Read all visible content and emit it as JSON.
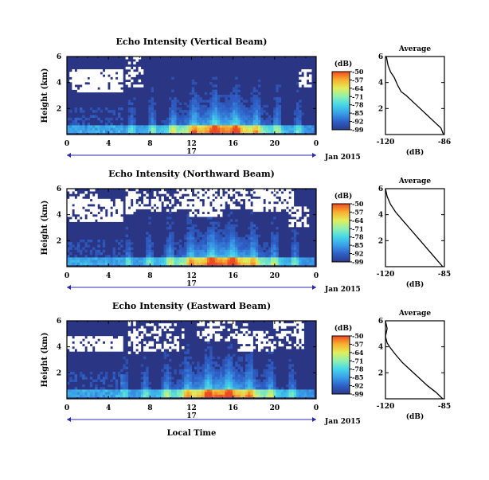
{
  "colors": {
    "background": "#2a3684",
    "colorbar": [
      "#2b3a8a",
      "#2f60c8",
      "#3a9fe8",
      "#46d6e8",
      "#8ff0b0",
      "#e2ee5a",
      "#f8b030",
      "#f04a20"
    ],
    "gap": "#ffffff"
  },
  "shared": {
    "ylabel": "Height (km)",
    "cbar_label": "(dB)",
    "avg_title": "Average",
    "avg_xlabel": "(dB)",
    "date_label": "Jan 2015",
    "day_label": "17",
    "x_label": "Local Time"
  },
  "chart_data": [
    {
      "type": "heatmap",
      "title": "Echo Intensity (Vertical Beam)",
      "xlabel": "",
      "ylabel": "Height (km)",
      "x_ticks": [
        "0",
        "4",
        "8",
        "12",
        "16",
        "20",
        "0"
      ],
      "y_ticks": [
        "2",
        "4",
        "6"
      ],
      "xlim": [
        0,
        24
      ],
      "ylim": [
        0,
        6
      ],
      "colorbar": {
        "label": "(dB)",
        "ticks": [
          "-50",
          "-57",
          "-64",
          "-71",
          "-78",
          "-85",
          "-92",
          "-99"
        ],
        "range": [
          -99,
          -50
        ]
      },
      "profile": {
        "title": "Average",
        "xlabel": "(dB)",
        "x_ticks": [
          "-120",
          "-86"
        ],
        "y_ticks": [
          "2",
          "4",
          "6"
        ],
        "xlim": [
          -120,
          -86
        ],
        "ylim": [
          0,
          6
        ],
        "x": [
          -86.5,
          -88,
          -92,
          -96,
          -100,
          -104,
          -108,
          -111,
          -113,
          -115,
          -117,
          -118.5,
          -119.5
        ],
        "y": [
          0,
          0.5,
          1.0,
          1.5,
          2.0,
          2.5,
          3.0,
          3.3,
          3.8,
          4.4,
          4.8,
          5.3,
          6
        ]
      }
    },
    {
      "type": "heatmap",
      "title": "Echo Intensity (Northward Beam)",
      "xlabel": "",
      "ylabel": "Height (km)",
      "x_ticks": [
        "0",
        "4",
        "8",
        "12",
        "16",
        "20",
        "0"
      ],
      "y_ticks": [
        "2",
        "4",
        "6"
      ],
      "xlim": [
        0,
        24
      ],
      "ylim": [
        0,
        6
      ],
      "colorbar": {
        "label": "(dB)",
        "ticks": [
          "-50",
          "-57",
          "-64",
          "-71",
          "-78",
          "-85",
          "-92",
          "-99"
        ],
        "range": [
          -99,
          -50
        ]
      },
      "profile": {
        "title": "Average",
        "xlabel": "(dB)",
        "x_ticks": [
          "-120",
          "-85"
        ],
        "y_ticks": [
          "2",
          "4",
          "6"
        ],
        "xlim": [
          -120,
          -85
        ],
        "ylim": [
          0,
          6
        ],
        "x": [
          -86,
          -90,
          -94,
          -98,
          -102,
          -106,
          -110,
          -114,
          -117,
          -119,
          -120
        ],
        "y": [
          0,
          0.6,
          1.2,
          1.8,
          2.4,
          3.0,
          3.6,
          4.2,
          4.8,
          5.4,
          6
        ]
      }
    },
    {
      "type": "heatmap",
      "title": "Echo Intensity (Eastward Beam)",
      "xlabel": "Local Time",
      "ylabel": "Height (km)",
      "x_ticks": [
        "0",
        "4",
        "8",
        "12",
        "16",
        "20",
        "0"
      ],
      "y_ticks": [
        "2",
        "4",
        "6"
      ],
      "xlim": [
        0,
        24
      ],
      "ylim": [
        0,
        6
      ],
      "colorbar": {
        "label": "(dB)",
        "ticks": [
          "-50",
          "-57",
          "-64",
          "-71",
          "-78",
          "-85",
          "-92",
          "-99"
        ],
        "range": [
          -99,
          -50
        ]
      },
      "profile": {
        "title": "Average",
        "xlabel": "(dB)",
        "x_ticks": [
          "-120",
          "-85"
        ],
        "y_ticks": [
          "2",
          "4",
          "6"
        ],
        "xlim": [
          -120,
          -85
        ],
        "ylim": [
          0,
          6
        ],
        "x": [
          -86,
          -90,
          -95,
          -100,
          -105,
          -110,
          -114,
          -117,
          -119,
          -120,
          -119,
          -120
        ],
        "y": [
          0,
          0.5,
          1.0,
          1.6,
          2.2,
          2.8,
          3.4,
          3.9,
          4.3,
          4.8,
          5.4,
          6
        ]
      }
    }
  ]
}
